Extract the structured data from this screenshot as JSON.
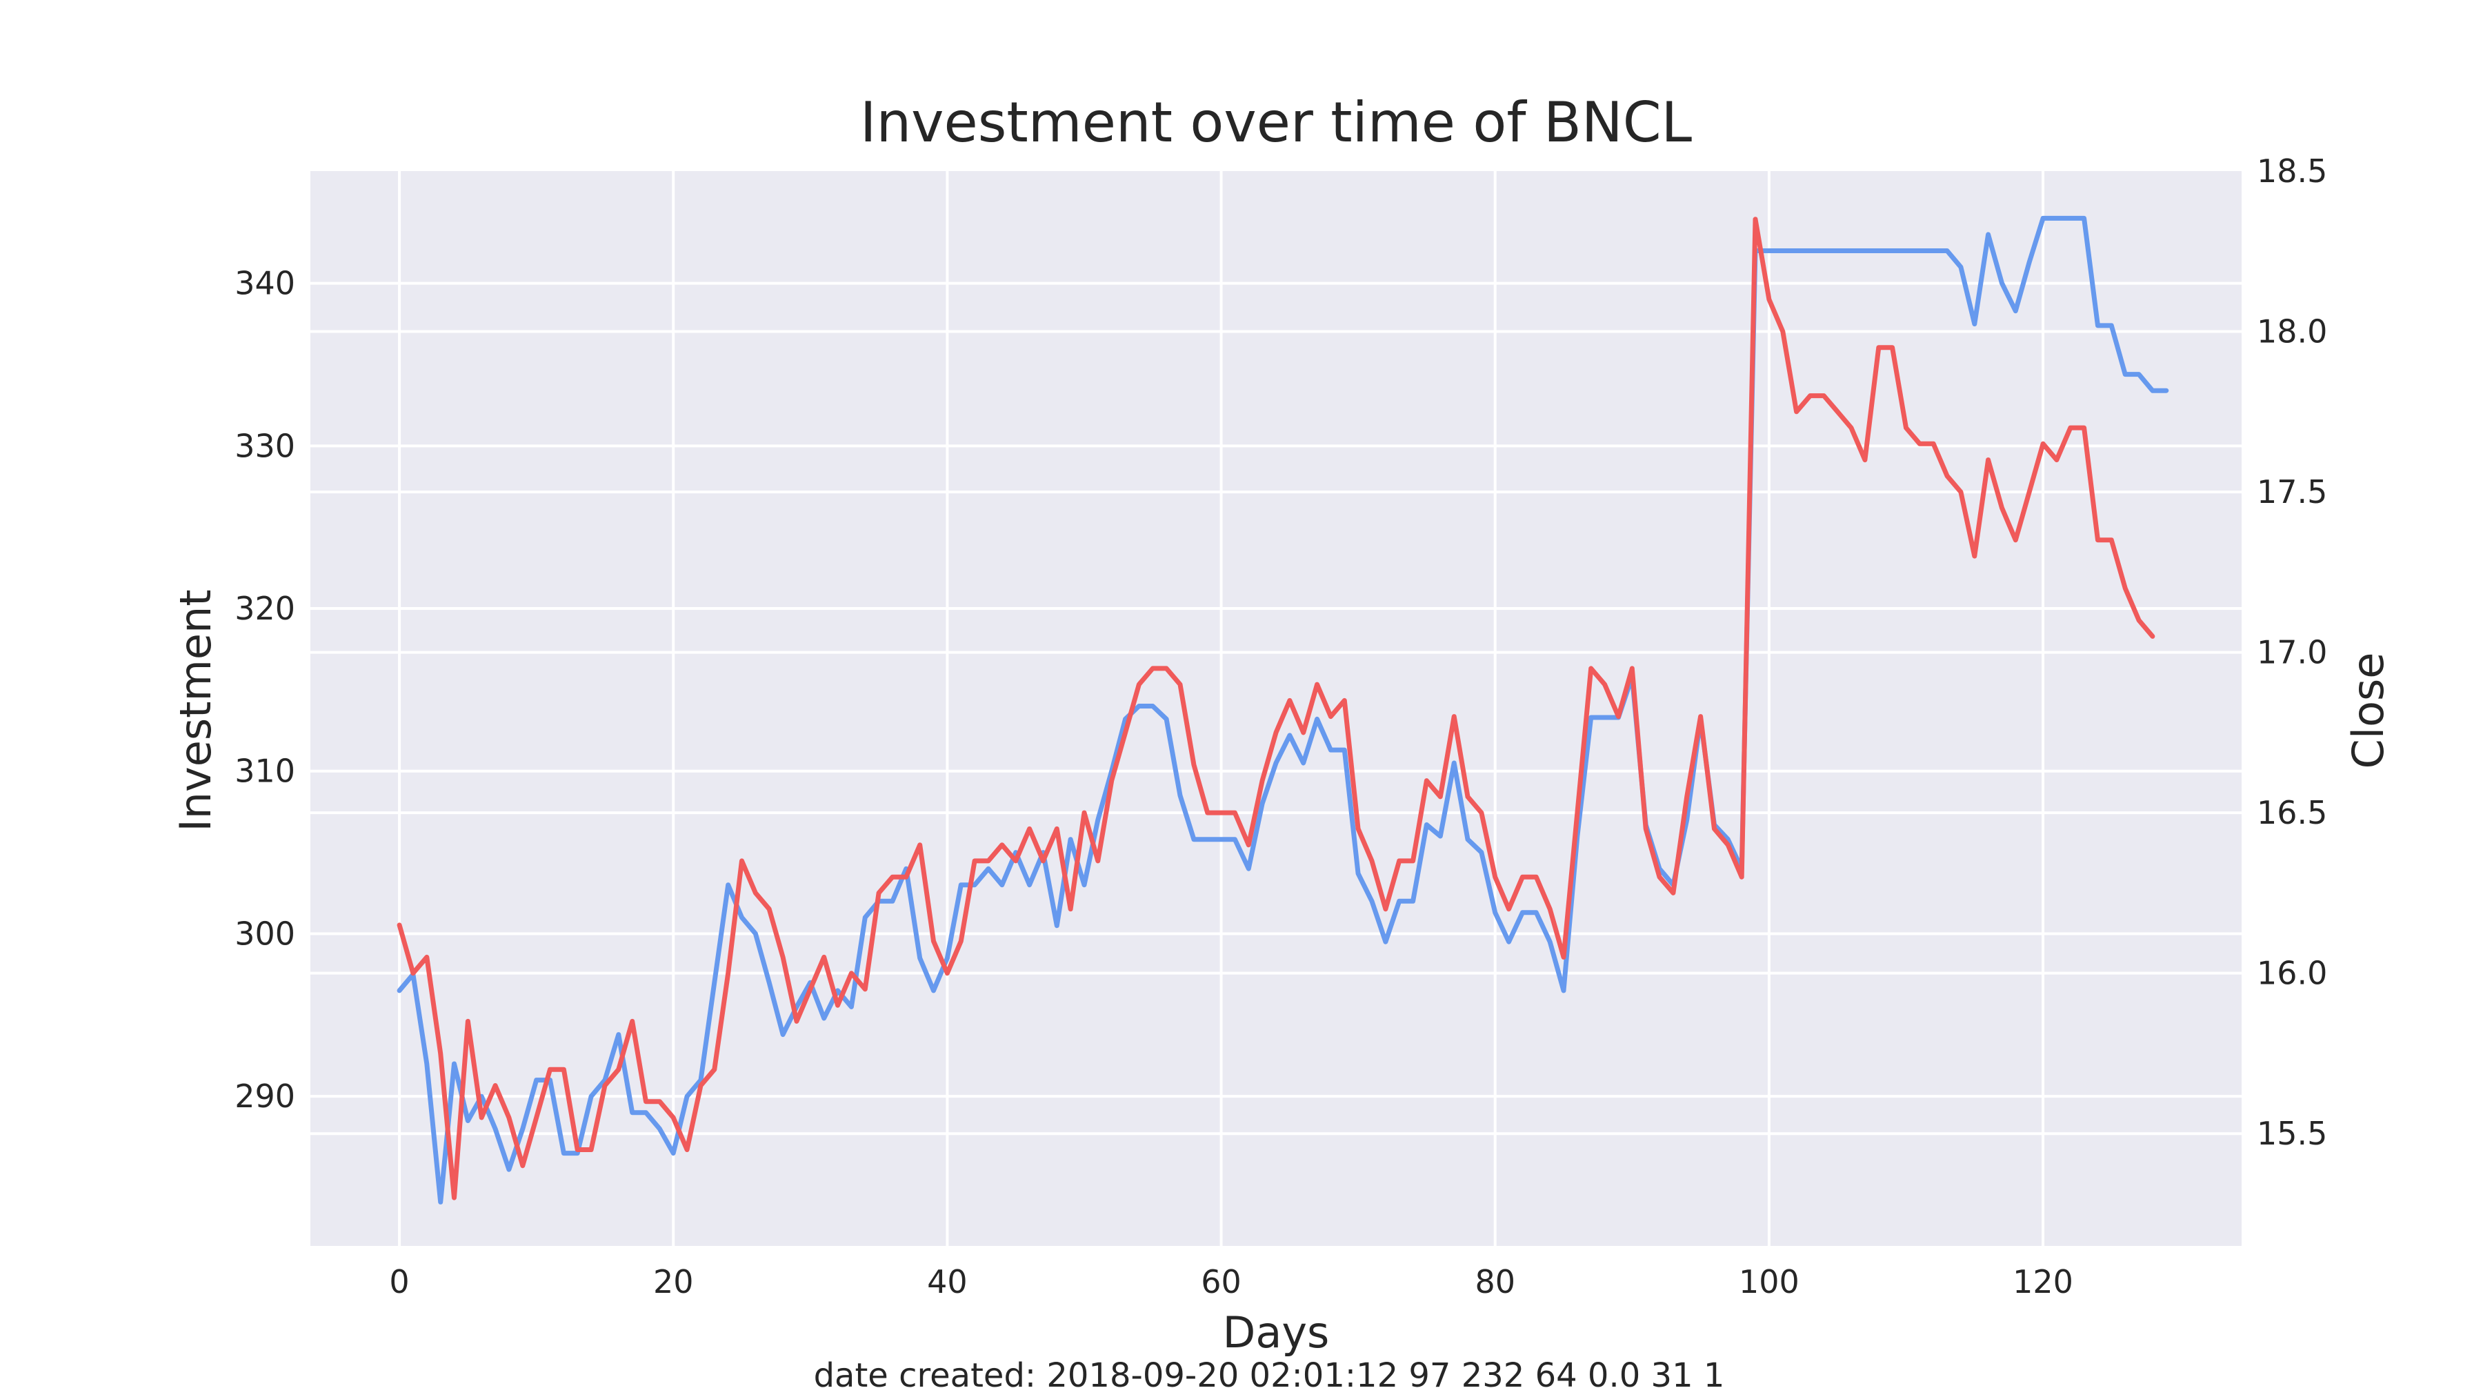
{
  "chart_data": {
    "type": "line",
    "title": "Investment over time of BNCL",
    "xlabel": "Days",
    "footer": "date created: 2018-09-20 02:01:12 97 232 64 0.0 31 1",
    "xlim": [
      -6.5,
      134.5
    ],
    "x_ticks": [
      0,
      20,
      40,
      60,
      80,
      100,
      120
    ],
    "grid": true,
    "axes": {
      "left": {
        "label": "Investment",
        "color": "#6699ee",
        "lim": [
          280.8,
          346.9
        ],
        "ticks": [
          290,
          300,
          310,
          320,
          330,
          340
        ]
      },
      "right": {
        "label": "Close",
        "color": "#f05a5a",
        "lim": [
          15.15,
          18.5
        ],
        "ticks": [
          15.5,
          16.0,
          16.5,
          17.0,
          17.5,
          18.0,
          18.5
        ]
      }
    },
    "series": [
      {
        "name": "Investment",
        "axis": "left",
        "color": "#6699ee",
        "values": [
          296.5,
          297.5,
          292,
          283.5,
          292,
          288.5,
          290,
          288,
          285.5,
          288,
          291,
          291,
          286.5,
          286.5,
          290,
          291,
          293.8,
          289,
          289,
          288,
          286.5,
          290,
          291,
          297,
          303,
          301,
          300,
          297,
          293.8,
          295.5,
          297,
          294.8,
          296.5,
          295.5,
          301,
          302,
          302,
          304,
          298.5,
          296.5,
          298.5,
          303,
          303,
          304,
          303,
          305,
          303,
          305,
          300.5,
          305.8,
          303,
          307,
          310,
          313.2,
          314,
          314,
          313.2,
          308.5,
          305.8,
          305.8,
          305.8,
          305.8,
          304,
          308,
          310.5,
          312.2,
          310.5,
          313.2,
          311.3,
          311.3,
          303.7,
          302,
          299.5,
          302,
          302,
          306.7,
          306,
          310.5,
          305.8,
          305,
          301.3,
          299.5,
          301.3,
          301.3,
          299.5,
          296.5,
          306,
          313.3,
          313.3,
          313.3,
          315.8,
          306.7,
          304,
          303,
          307,
          313.2,
          306.7,
          305.8,
          304,
          342,
          342,
          342,
          342,
          342,
          342,
          342,
          342,
          342,
          342,
          342,
          342,
          342,
          342,
          342,
          341,
          337.5,
          343,
          340,
          338.3,
          341.3,
          344,
          344,
          344,
          344,
          337.4,
          337.4,
          334.4,
          334.4,
          333.4,
          333.4
        ]
      },
      {
        "name": "Close",
        "axis": "right",
        "color": "#f05a5a",
        "values": [
          16.15,
          16.0,
          16.05,
          15.75,
          15.3,
          15.85,
          15.55,
          15.65,
          15.55,
          15.4,
          15.55,
          15.7,
          15.7,
          15.45,
          15.45,
          15.65,
          15.7,
          15.85,
          15.6,
          15.6,
          15.55,
          15.45,
          15.65,
          15.7,
          16.0,
          16.35,
          16.25,
          16.2,
          16.05,
          15.85,
          15.95,
          16.05,
          15.9,
          16.0,
          15.95,
          16.25,
          16.3,
          16.3,
          16.4,
          16.1,
          16.0,
          16.1,
          16.35,
          16.35,
          16.4,
          16.35,
          16.45,
          16.35,
          16.45,
          16.2,
          16.5,
          16.35,
          16.6,
          16.75,
          16.9,
          16.95,
          16.95,
          16.9,
          16.65,
          16.5,
          16.5,
          16.5,
          16.4,
          16.6,
          16.75,
          16.85,
          16.75,
          16.9,
          16.8,
          16.85,
          16.45,
          16.35,
          16.2,
          16.35,
          16.35,
          16.6,
          16.55,
          16.8,
          16.55,
          16.5,
          16.3,
          16.2,
          16.3,
          16.3,
          16.2,
          16.05,
          16.5,
          16.95,
          16.9,
          16.8,
          16.95,
          16.45,
          16.3,
          16.25,
          16.55,
          16.8,
          16.45,
          16.4,
          16.3,
          18.35,
          18.1,
          18.0,
          17.75,
          17.8,
          17.8,
          17.75,
          17.7,
          17.6,
          17.95,
          17.95,
          17.7,
          17.65,
          17.65,
          17.55,
          17.5,
          17.3,
          17.6,
          17.45,
          17.35,
          17.5,
          17.65,
          17.6,
          17.7,
          17.7,
          17.35,
          17.35,
          17.2,
          17.1,
          17.05
        ]
      }
    ]
  }
}
